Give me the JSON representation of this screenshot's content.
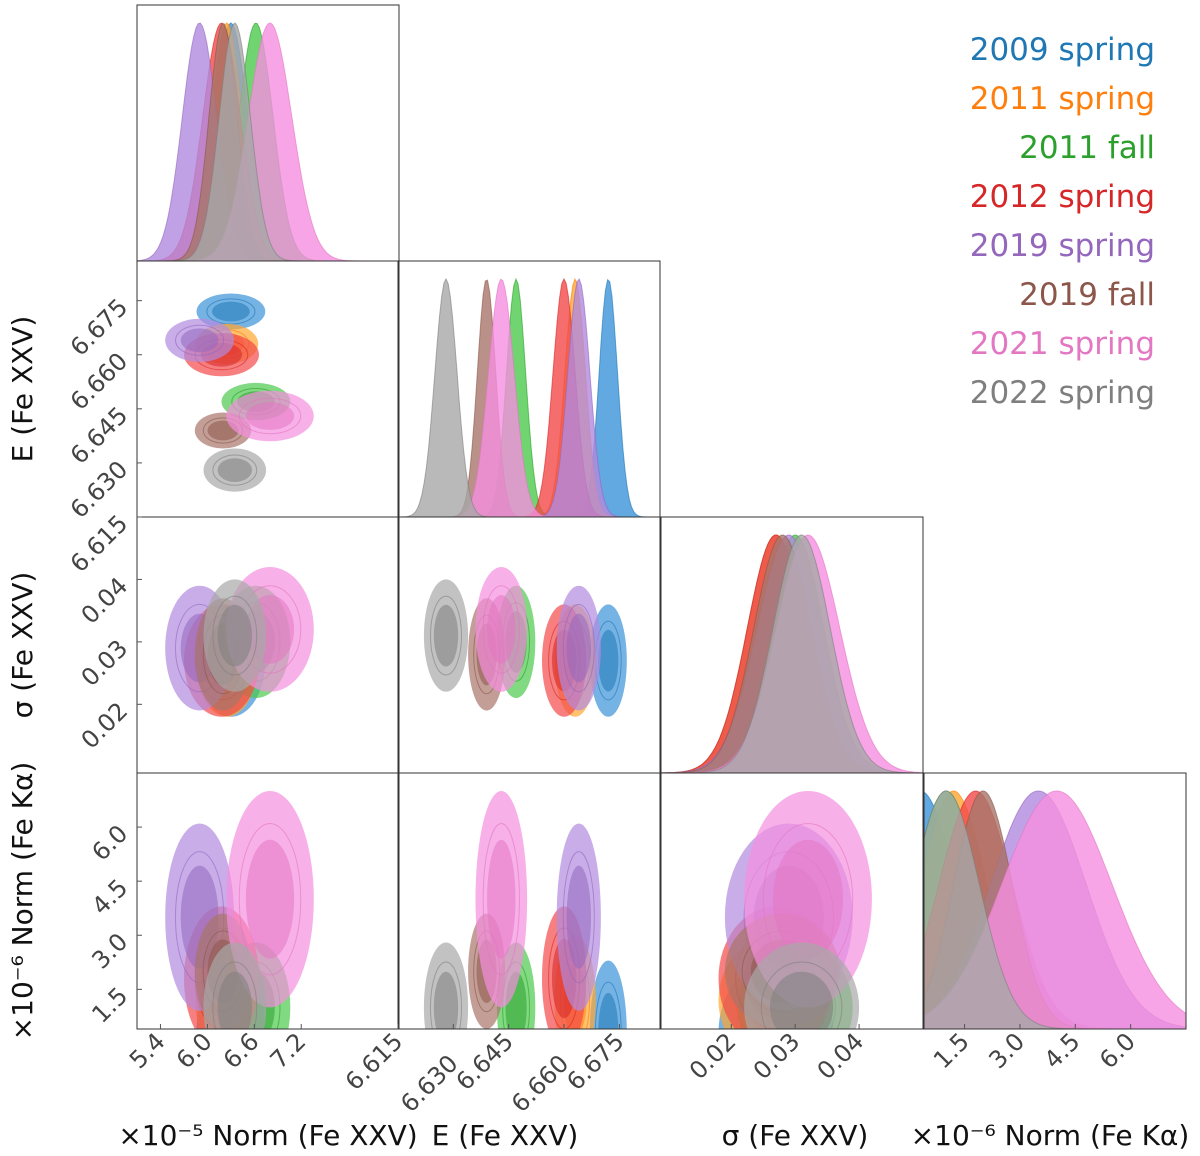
{
  "chart_data": {
    "type": "corner",
    "title": "",
    "params": [
      {
        "key": "normFeXXV",
        "label": "×10⁻⁵ Norm (Fe XXV)",
        "ylabel": "",
        "range": [
          5.1,
          8.45
        ],
        "ticks": [
          "5.4",
          "6.0",
          "6.6",
          "7.2"
        ]
      },
      {
        "key": "E",
        "label": "E (Fe XXV)",
        "ylabel": "E (Fe XXV)",
        "range": [
          6.615,
          6.686
        ],
        "ticks": [
          "6.615",
          "6.630",
          "6.645",
          "6.660",
          "6.675"
        ]
      },
      {
        "key": "sigma",
        "label": "σ (Fe XXV)",
        "ylabel": "σ (Fe XXV)",
        "range": [
          0.009,
          0.05
        ],
        "ticks": [
          "0.02",
          "0.03",
          "0.04"
        ]
      },
      {
        "key": "normFeKa",
        "label": "×10⁻⁶ Norm (Fe Kα)",
        "ylabel": "×10⁻⁶ Norm (Fe Kα)",
        "range": [
          0.4,
          7.5
        ],
        "ticks": [
          "1.5",
          "3.0",
          "4.5",
          "6.0"
        ]
      }
    ],
    "legend_position": "top-right",
    "series": [
      {
        "name": "2009 spring",
        "color": "#1f77b4",
        "fill": "#3a93d8",
        "mean": [
          6.3,
          6.672,
          0.027,
          0.3
        ],
        "sd": [
          0.22,
          0.0025,
          0.0045,
          1.0
        ]
      },
      {
        "name": "2011 spring",
        "color": "#ff7f0e",
        "fill": "#ffa630",
        "mean": [
          6.25,
          6.663,
          0.027,
          1.2
        ],
        "sd": [
          0.2,
          0.0028,
          0.0045,
          0.9
        ]
      },
      {
        "name": "2011 fall",
        "color": "#2ca02c",
        "fill": "#4cc94c",
        "mean": [
          6.62,
          6.647,
          0.03,
          1.0
        ],
        "sd": [
          0.22,
          0.0026,
          0.0045,
          0.9
        ]
      },
      {
        "name": "2012 spring",
        "color": "#d62728",
        "fill": "#f34848",
        "mean": [
          6.18,
          6.66,
          0.027,
          1.8
        ],
        "sd": [
          0.24,
          0.003,
          0.0045,
          1.0
        ]
      },
      {
        "name": "2019 spring",
        "color": "#9467bd",
        "fill": "#b28ae0",
        "mean": [
          5.9,
          6.664,
          0.029,
          3.5
        ],
        "sd": [
          0.22,
          0.003,
          0.005,
          1.3
        ]
      },
      {
        "name": "2019 fall",
        "color": "#8c564b",
        "fill": "#a8756a",
        "mean": [
          6.2,
          6.639,
          0.028,
          2.0
        ],
        "sd": [
          0.18,
          0.0025,
          0.0045,
          0.8
        ]
      },
      {
        "name": "2021 spring",
        "color": "#e377c2",
        "fill": "#f58fe0",
        "mean": [
          6.8,
          6.643,
          0.032,
          4.0
        ],
        "sd": [
          0.28,
          0.0035,
          0.005,
          1.5
        ]
      },
      {
        "name": "2022 spring",
        "color": "#7f7f7f",
        "fill": "#a8a8a8",
        "mean": [
          6.35,
          6.628,
          0.031,
          1.0
        ],
        "sd": [
          0.2,
          0.003,
          0.0045,
          0.9
        ]
      }
    ]
  }
}
